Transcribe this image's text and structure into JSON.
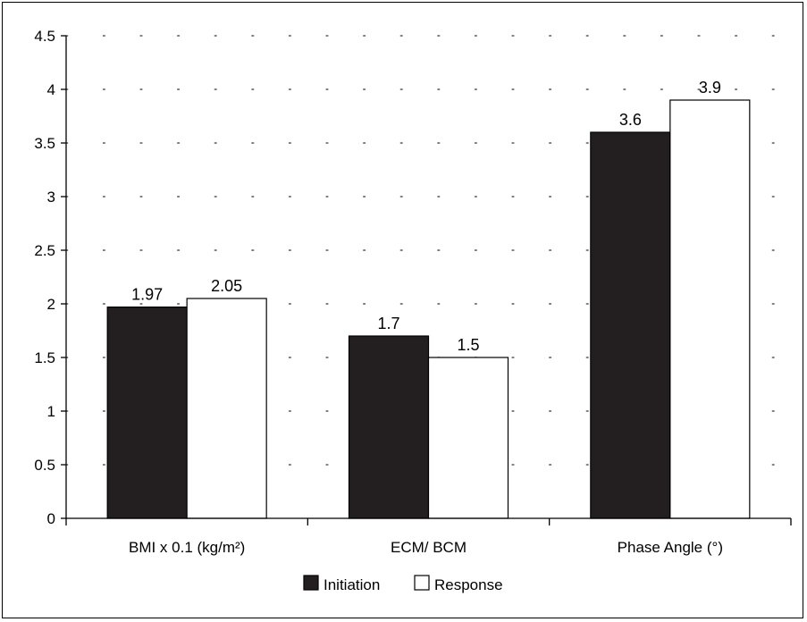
{
  "chart_data": {
    "type": "bar",
    "categories": [
      "BMI x 0.1 (kg/m²)",
      "ECM/ BCM",
      "Phase Angle (°)"
    ],
    "series": [
      {
        "name": "Initiation",
        "values": [
          1.97,
          1.7,
          3.6
        ],
        "labels": [
          "1.97",
          "1.7",
          "3.6"
        ],
        "color": "#231f20"
      },
      {
        "name": "Response",
        "values": [
          2.05,
          1.5,
          3.9
        ],
        "labels": [
          "2.05",
          "1.5",
          "3.9"
        ],
        "color": "#ffffff"
      }
    ],
    "ylim": [
      0,
      4.5
    ],
    "yticks": [
      0,
      0.5,
      1,
      1.5,
      2,
      2.5,
      3,
      3.5,
      4,
      4.5
    ],
    "ytick_labels": [
      "0",
      "0.5",
      "1",
      "1.5",
      "2",
      "2.5",
      "3",
      "3.5",
      "4",
      "4.5"
    ],
    "grid": "dotted",
    "legend_position": "bottom-center"
  }
}
